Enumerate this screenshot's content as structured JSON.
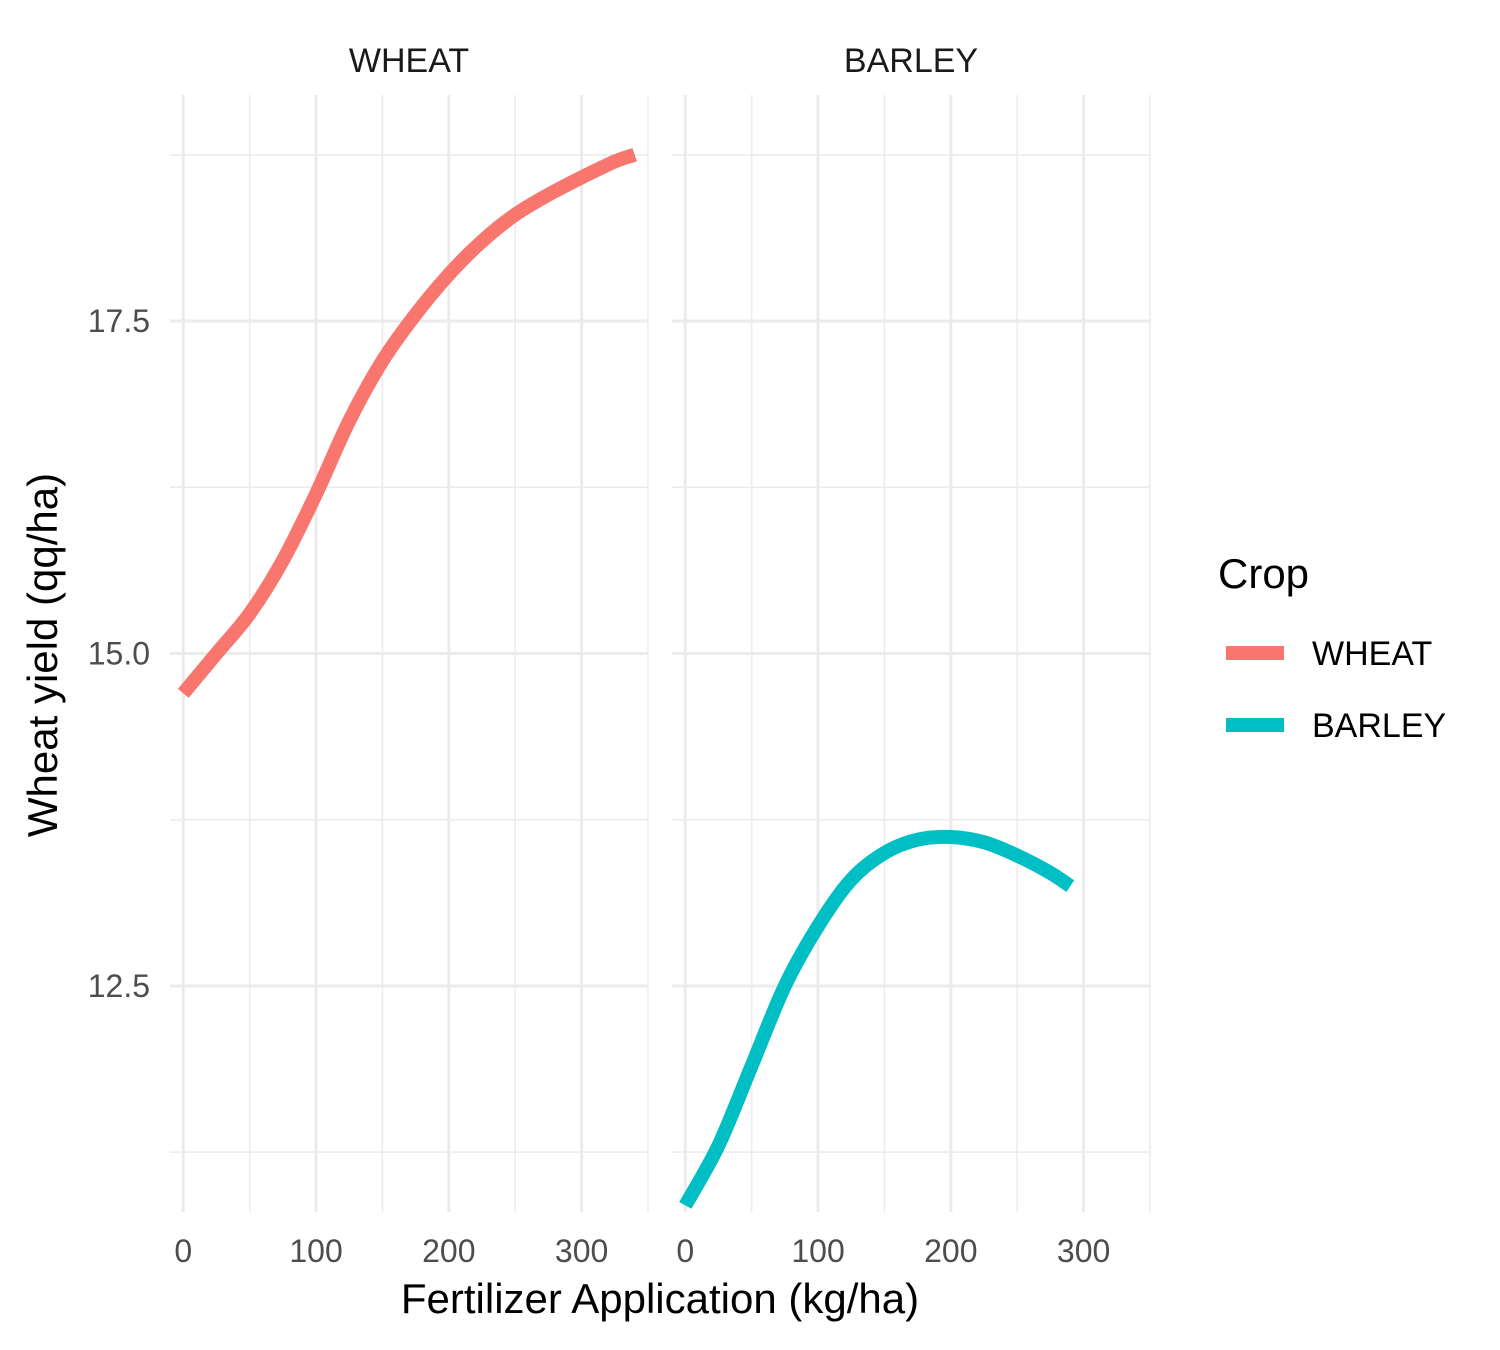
{
  "chart_data": {
    "type": "line",
    "facets": [
      "WHEAT",
      "BARLEY"
    ],
    "xlabel": "Fertilizer Application (kg/ha)",
    "ylabel": "Wheat yield (qq/ha)",
    "xlim": [
      -10,
      350
    ],
    "ylim": [
      10.8,
      19.2
    ],
    "x_ticks": [
      0,
      100,
      200,
      300
    ],
    "x_tick_labels": [
      "0",
      "100",
      "200",
      "300"
    ],
    "y_ticks": [
      12.5,
      15.0,
      17.5
    ],
    "y_tick_labels": [
      "12.5",
      "15.0",
      "17.5"
    ],
    "grid": true,
    "legend": {
      "title": "Crop",
      "position": "right",
      "entries": [
        {
          "label": "WHEAT",
          "color": "#F8766D"
        },
        {
          "label": "BARLEY",
          "color": "#00BFC4"
        }
      ]
    },
    "series": [
      {
        "name": "WHEAT",
        "color": "#F8766D",
        "x": [
          0,
          25,
          50,
          75,
          100,
          125,
          150,
          175,
          200,
          225,
          250,
          275,
          300,
          325,
          340
        ],
        "y": [
          14.7,
          15.0,
          15.3,
          15.7,
          16.2,
          16.75,
          17.2,
          17.55,
          17.85,
          18.1,
          18.3,
          18.45,
          18.58,
          18.7,
          18.75
        ]
      },
      {
        "name": "BARLEY",
        "color": "#00BFC4",
        "x": [
          0,
          25,
          50,
          75,
          100,
          125,
          150,
          175,
          200,
          225,
          250,
          275,
          290
        ],
        "y": [
          10.85,
          11.3,
          11.9,
          12.5,
          12.95,
          13.3,
          13.5,
          13.6,
          13.62,
          13.58,
          13.48,
          13.35,
          13.25
        ]
      }
    ]
  }
}
